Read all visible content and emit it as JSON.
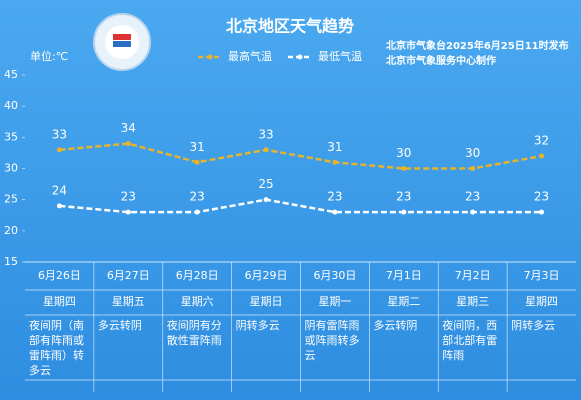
{
  "chart_data": {
    "type": "line",
    "title": "北京地区天气趋势",
    "unit_label": "单位:℃",
    "source_lines": [
      "北京市气象台2025年6月25日11时发布",
      "北京市气象服务中心制作"
    ],
    "categories": [
      "6月26日",
      "6月27日",
      "6月28日",
      "6月29日",
      "6月30日",
      "7月1日",
      "7月2日",
      "7月3日"
    ],
    "weekdays": [
      "星期四",
      "星期五",
      "星期六",
      "星期日",
      "星期一",
      "星期二",
      "星期三",
      "星期四"
    ],
    "descriptions": [
      "夜间阴（南部有阵雨或雷阵雨）转多云",
      "多云转阴",
      "夜间阴有分散性雷阵雨",
      "阴转多云",
      "阴有雷阵雨或阵雨转多云",
      "多云转阴",
      "夜间阴，西部北部有雷阵雨",
      "阴转多云"
    ],
    "series": [
      {
        "name": "最高气温",
        "color": "#e5b42c",
        "values": [
          33,
          34,
          31,
          33,
          31,
          30,
          30,
          32
        ]
      },
      {
        "name": "最低气温",
        "color": "#ffffff",
        "values": [
          24,
          23,
          23,
          25,
          23,
          23,
          23,
          23
        ]
      }
    ],
    "ylim": [
      15,
      45
    ],
    "yticks": [
      15,
      20,
      25,
      30,
      35,
      40,
      45
    ]
  }
}
